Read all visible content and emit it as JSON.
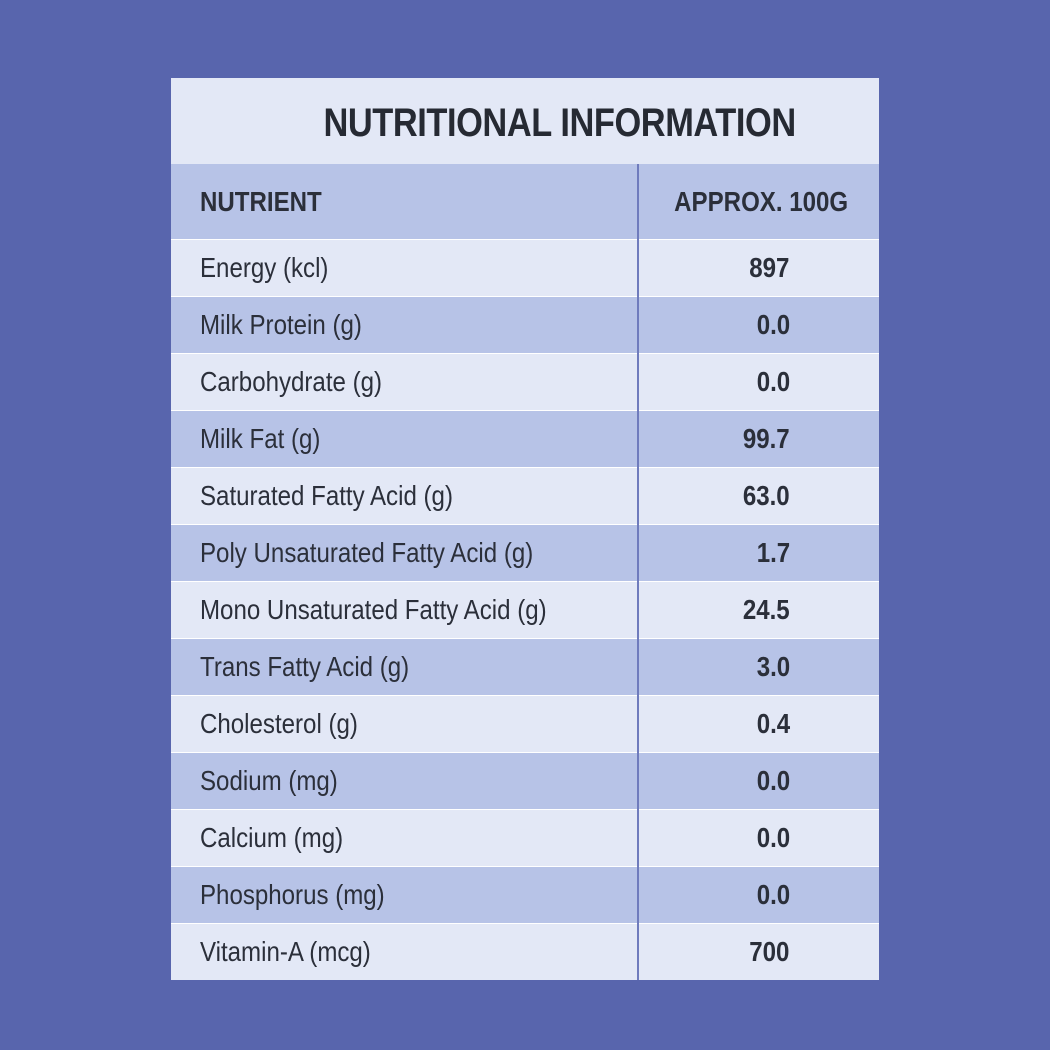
{
  "title": "NUTRITIONAL INFORMATION",
  "columns": {
    "nutrient": "NUTRIENT",
    "amount": "APPROX. 100G"
  },
  "rows": [
    {
      "name": "Energy (kcl)",
      "value": "897"
    },
    {
      "name": "Milk Protein (g)",
      "value": "0.0"
    },
    {
      "name": "Carbohydrate (g)",
      "value": "0.0"
    },
    {
      "name": "Milk Fat (g)",
      "value": "99.7"
    },
    {
      "name": "Saturated Fatty Acid (g)",
      "value": "63.0"
    },
    {
      "name": "Poly Unsaturated Fatty Acid (g)",
      "value": "1.7"
    },
    {
      "name": "Mono Unsaturated Fatty Acid (g)",
      "value": "24.5"
    },
    {
      "name": "Trans Fatty Acid (g)",
      "value": "3.0"
    },
    {
      "name": "Cholesterol (g)",
      "value": "0.4"
    },
    {
      "name": "Sodium (mg)",
      "value": "0.0"
    },
    {
      "name": "Calcium (mg)",
      "value": "0.0"
    },
    {
      "name": "Phosphorus (mg)",
      "value": "0.0"
    },
    {
      "name": "Vitamin-A (mcg)",
      "value": "700"
    }
  ],
  "colors": {
    "background": "#5865ad",
    "panel_light": "#e3e8f6",
    "panel_dark": "#b7c3e7",
    "divider": "#6f7bbd",
    "text": "#2b2f3a"
  }
}
